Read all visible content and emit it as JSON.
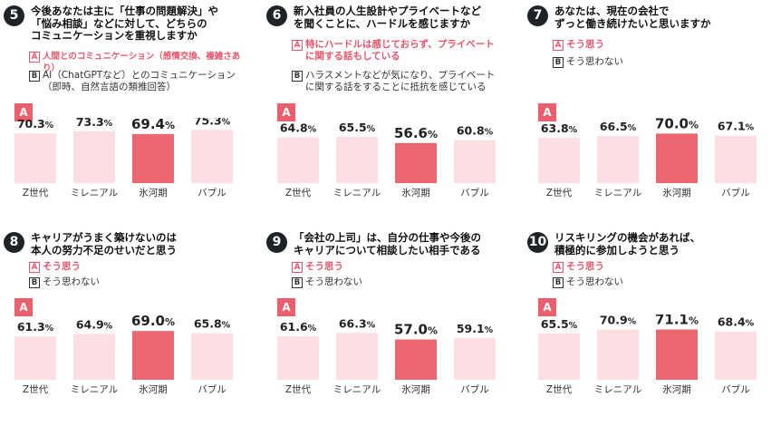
{
  "colors": {
    "accent": "#ec5f6c",
    "bar_light": "#fcdfe3",
    "bar_highlight": "#ec666f"
  },
  "chart_data": [
    {
      "type": "bar",
      "question_number": "5",
      "question": "今後あなたは主に「仕事の問題解決」や\n「悩み相談」などに対して、どちらの\nコミュニケーションを重視しますか",
      "option_a_mark": "A",
      "option_a": "人間とのコミュニケーション（感情交換、複雑さあり）",
      "option_b_mark": "B",
      "option_b": "AI（ChatGPTなど）とのコミュニケーション\n（即時、自然言語の類推回答）",
      "series_mark": "A",
      "categories": [
        "Z世代",
        "ミレニアル",
        "氷河期",
        "バブル"
      ],
      "values": [
        70.3,
        73.3,
        69.4,
        75.3
      ],
      "highlight_index": 2,
      "unit": "%"
    },
    {
      "type": "bar",
      "question_number": "6",
      "question": "新入社員の人生設計やプライベートなど\nを聞くことに、ハードルを感じますか",
      "option_a_mark": "A",
      "option_a": "特にハードルは感じておらず、プライベート\nに関する話もしている",
      "option_b_mark": "B",
      "option_b": "ハラスメントなどが気になり、プライベート\nに関する話をすることに抵抗を感じている",
      "series_mark": "A",
      "categories": [
        "Z世代",
        "ミレニアル",
        "氷河期",
        "バブル"
      ],
      "values": [
        64.8,
        65.5,
        56.6,
        60.8
      ],
      "highlight_index": 2,
      "unit": "%"
    },
    {
      "type": "bar",
      "question_number": "7",
      "question": "あなたは、現在の会社で\nずっと働き続けたいと思いますか",
      "option_a_mark": "A",
      "option_a": "そう思う",
      "option_b_mark": "B",
      "option_b": "そう思わない",
      "series_mark": "A",
      "categories": [
        "Z世代",
        "ミレニアル",
        "氷河期",
        "バブル"
      ],
      "values": [
        63.8,
        66.5,
        70.0,
        67.1
      ],
      "highlight_index": 2,
      "unit": "%"
    },
    {
      "type": "bar",
      "question_number": "8",
      "question": "キャリアがうまく築けないのは\n本人の努力不足のせいだと思う",
      "option_a_mark": "A",
      "option_a": "そう思う",
      "option_b_mark": "B",
      "option_b": "そう思わない",
      "series_mark": "A",
      "categories": [
        "Z世代",
        "ミレニアル",
        "氷河期",
        "バブル"
      ],
      "values": [
        61.3,
        64.9,
        69.0,
        65.8
      ],
      "highlight_index": 2,
      "unit": "%"
    },
    {
      "type": "bar",
      "question_number": "9",
      "question": "「会社の上司」は、自分の仕事や今後の\nキャリアについて相談したい相手である",
      "option_a_mark": "A",
      "option_a": "そう思う",
      "option_b_mark": "B",
      "option_b": "そう思わない",
      "series_mark": "A",
      "categories": [
        "Z世代",
        "ミレニアル",
        "氷河期",
        "バブル"
      ],
      "values": [
        61.6,
        66.3,
        57.0,
        59.1
      ],
      "highlight_index": 2,
      "unit": "%"
    },
    {
      "type": "bar",
      "question_number": "10",
      "question": "リスキリングの機会があれば、\n積極的に参加しようと思う",
      "option_a_mark": "A",
      "option_a": "そう思う",
      "option_b_mark": "B",
      "option_b": "そう思わない",
      "series_mark": "A",
      "categories": [
        "Z世代",
        "ミレニアル",
        "氷河期",
        "バブル"
      ],
      "values": [
        65.5,
        70.9,
        71.1,
        68.4
      ],
      "highlight_index": 2,
      "unit": "%"
    }
  ]
}
